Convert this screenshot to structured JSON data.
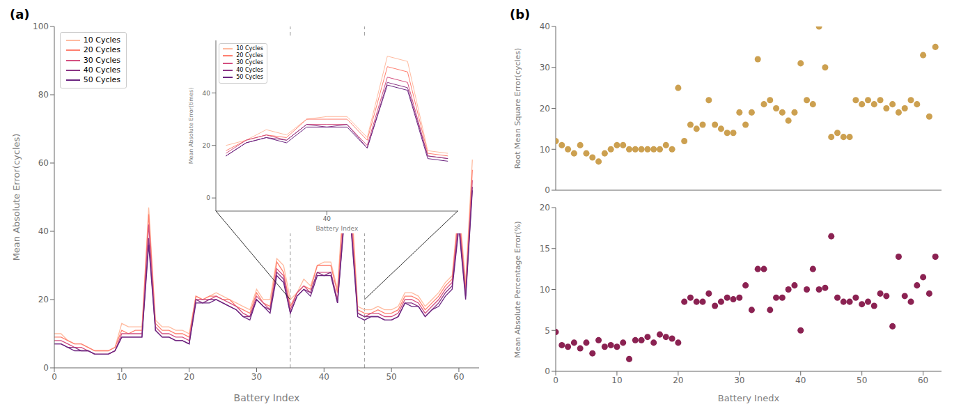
{
  "chart_data": [
    {
      "type": "line",
      "title": "(a)",
      "xlabel": "Battery Index",
      "ylabel": "Mean Absolute Error(cycles)",
      "x": [
        0,
        1,
        2,
        3,
        4,
        5,
        6,
        7,
        8,
        9,
        10,
        11,
        12,
        13,
        14,
        15,
        16,
        17,
        18,
        19,
        20,
        21,
        22,
        23,
        24,
        25,
        26,
        27,
        28,
        29,
        30,
        31,
        32,
        33,
        34,
        35,
        36,
        37,
        38,
        39,
        40,
        41,
        42,
        43,
        44,
        45,
        46,
        47,
        48,
        49,
        50,
        51,
        52,
        53,
        54,
        55,
        56,
        57,
        58,
        59,
        60,
        61,
        62
      ],
      "xlim": [
        0,
        63
      ],
      "ylim": [
        0,
        100
      ],
      "xticks": [
        0,
        10,
        20,
        30,
        40,
        50,
        60
      ],
      "yticks": [
        0,
        20,
        40,
        60,
        80,
        100
      ],
      "legend": "upper left",
      "grid": false,
      "vlines": [
        35,
        46
      ],
      "connector_y": 20,
      "series": [
        {
          "name": "10 Cycles",
          "color": "#FFBBA0",
          "values": [
            10,
            10,
            8,
            7,
            7,
            6,
            5,
            5,
            5,
            6,
            13,
            12,
            12,
            12,
            47,
            14,
            12,
            12,
            11,
            11,
            10,
            21,
            20,
            21,
            22,
            21,
            20,
            19,
            18,
            17,
            23,
            20,
            20,
            32,
            30,
            20,
            22,
            26,
            24,
            30,
            31,
            31,
            23,
            54,
            52,
            18,
            17,
            17,
            18,
            17,
            17,
            18,
            22,
            22,
            21,
            18,
            20,
            22,
            25,
            27,
            48,
            25,
            61
          ]
        },
        {
          "name": "20 Cycles",
          "color": "#FF8070",
          "values": [
            9,
            9,
            8,
            7,
            7,
            6,
            5,
            5,
            5,
            6,
            11,
            10,
            11,
            11,
            45,
            13,
            11,
            11,
            10,
            10,
            9,
            21,
            20,
            21,
            21,
            20,
            20,
            18,
            17,
            16,
            22,
            19,
            18,
            31,
            28,
            18,
            22,
            24,
            23,
            30,
            30,
            30,
            22,
            50,
            48,
            17,
            16,
            16,
            17,
            16,
            16,
            17,
            21,
            21,
            20,
            17,
            19,
            21,
            24,
            26,
            46,
            23,
            58
          ]
        },
        {
          "name": "30 Cycles",
          "color": "#D45080",
          "values": [
            8,
            8,
            7,
            6,
            6,
            5,
            4,
            4,
            4,
            5,
            10,
            10,
            10,
            10,
            42,
            12,
            10,
            10,
            9,
            9,
            8,
            20,
            20,
            20,
            21,
            20,
            19,
            18,
            16,
            15,
            21,
            19,
            17,
            29,
            27,
            17,
            22,
            24,
            22,
            28,
            28,
            28,
            20,
            46,
            44,
            16,
            15,
            16,
            16,
            15,
            15,
            16,
            20,
            20,
            19,
            16,
            18,
            20,
            23,
            25,
            44,
            22,
            55
          ]
        },
        {
          "name": "40 Cycles",
          "color": "#8B3585",
          "values": [
            7,
            7,
            6,
            6,
            5,
            5,
            4,
            4,
            4,
            5,
            9,
            9,
            9,
            9,
            38,
            11,
            9,
            9,
            8,
            8,
            7,
            20,
            19,
            20,
            20,
            19,
            18,
            17,
            15,
            15,
            20,
            18,
            17,
            28,
            26,
            16,
            21,
            23,
            22,
            28,
            27,
            28,
            19,
            44,
            42,
            16,
            15,
            15,
            15,
            14,
            14,
            15,
            19,
            19,
            18,
            15,
            17,
            19,
            22,
            24,
            42,
            21,
            53
          ]
        },
        {
          "name": "50 Cycles",
          "color": "#6B2580",
          "values": [
            7,
            7,
            6,
            5,
            5,
            5,
            4,
            4,
            4,
            5,
            9,
            9,
            9,
            9,
            36,
            11,
            9,
            9,
            8,
            8,
            7,
            19,
            19,
            19,
            20,
            19,
            18,
            17,
            15,
            14,
            20,
            18,
            16,
            27,
            25,
            16,
            21,
            23,
            21,
            27,
            27,
            27,
            19,
            43,
            41,
            15,
            14,
            15,
            15,
            14,
            14,
            15,
            19,
            18,
            18,
            15,
            17,
            18,
            21,
            23,
            41,
            20,
            52
          ]
        }
      ]
    },
    {
      "type": "line",
      "xlabel": "Battery Index",
      "ylabel": "Mean Absolute Error(times)",
      "x": [
        35,
        36,
        37,
        38,
        39,
        40,
        41,
        42,
        43,
        44,
        45,
        46
      ],
      "xlim": [
        34.5,
        46.5
      ],
      "ylim": [
        -5,
        60
      ],
      "xticks": [
        40
      ],
      "yticks": [
        0,
        20,
        40
      ],
      "legend": "upper left",
      "grid": false,
      "series": [
        {
          "name": "10 Cycles",
          "color": "#FFBBA0",
          "values": [
            20,
            22,
            26,
            24,
            30,
            31,
            31,
            23,
            54,
            52,
            18,
            17
          ]
        },
        {
          "name": "20 Cycles",
          "color": "#FF8070",
          "values": [
            18,
            22,
            24,
            23,
            30,
            30,
            30,
            22,
            50,
            48,
            17,
            16
          ]
        },
        {
          "name": "30 Cycles",
          "color": "#D45080",
          "values": [
            17,
            22,
            24,
            22,
            28,
            28,
            28,
            20,
            46,
            44,
            16,
            15
          ]
        },
        {
          "name": "40 Cycles",
          "color": "#8B3585",
          "values": [
            16,
            21,
            23,
            22,
            28,
            27,
            28,
            19,
            44,
            42,
            16,
            15
          ]
        },
        {
          "name": "50 Cycles",
          "color": "#6B2580",
          "values": [
            16,
            21,
            23,
            21,
            27,
            27,
            27,
            19,
            43,
            41,
            15,
            14
          ]
        }
      ]
    },
    {
      "type": "scatter",
      "title": "(b)",
      "ylabel": "Root Mean Square Error(cycles)",
      "x": [
        0,
        1,
        2,
        3,
        4,
        5,
        6,
        7,
        8,
        9,
        10,
        11,
        12,
        13,
        14,
        15,
        16,
        17,
        18,
        19,
        20,
        21,
        22,
        23,
        24,
        25,
        26,
        27,
        28,
        29,
        30,
        31,
        32,
        33,
        34,
        35,
        36,
        37,
        38,
        39,
        40,
        41,
        42,
        43,
        44,
        45,
        46,
        47,
        48,
        49,
        50,
        51,
        52,
        53,
        54,
        55,
        56,
        57,
        58,
        59,
        60,
        61,
        62
      ],
      "values": [
        12,
        11,
        10,
        9,
        11,
        9,
        8,
        7,
        9,
        10,
        11,
        11,
        10,
        10,
        10,
        10,
        10,
        10,
        11,
        10,
        25,
        12,
        16,
        15,
        16,
        22,
        16,
        15,
        14,
        14,
        19,
        16,
        19,
        32,
        21,
        22,
        20,
        19,
        17,
        19,
        31,
        22,
        21,
        40,
        30,
        13,
        14,
        13,
        13,
        22,
        21,
        22,
        21,
        22,
        20,
        21,
        19,
        20,
        22,
        21,
        33,
        18,
        35
      ],
      "color": "#CCA050",
      "xlim": [
        0,
        63
      ],
      "ylim": [
        0,
        40
      ],
      "xticks": [
        0,
        10,
        20,
        30,
        40,
        50,
        60
      ],
      "yticks": [
        0,
        10,
        20,
        30,
        40
      ],
      "tick_labels": "y",
      "grid": false
    },
    {
      "type": "scatter",
      "xlabel": "Battery Inedx",
      "ylabel": "Mean Absolute Percentage Error(%)",
      "x": [
        0,
        1,
        2,
        3,
        4,
        5,
        6,
        7,
        8,
        9,
        10,
        11,
        12,
        13,
        14,
        15,
        16,
        17,
        18,
        19,
        20,
        21,
        22,
        23,
        24,
        25,
        26,
        27,
        28,
        29,
        30,
        31,
        32,
        33,
        34,
        35,
        36,
        37,
        38,
        39,
        40,
        41,
        42,
        43,
        44,
        45,
        46,
        47,
        48,
        49,
        50,
        51,
        52,
        53,
        54,
        55,
        56,
        57,
        58,
        59,
        60,
        61,
        62
      ],
      "values": [
        4.8,
        3.2,
        3.0,
        3.5,
        2.8,
        3.5,
        2.2,
        3.8,
        3.0,
        3.2,
        3.0,
        3.5,
        1.5,
        3.8,
        3.8,
        4.2,
        3.5,
        4.5,
        4.2,
        4.0,
        3.5,
        8.5,
        9.0,
        8.5,
        8.5,
        9.5,
        8.0,
        8.5,
        9.0,
        8.8,
        9.0,
        10.5,
        7.5,
        12.5,
        12.5,
        7.5,
        9.0,
        9.0,
        10.0,
        10.5,
        5.0,
        10.0,
        12.5,
        10.0,
        10.2,
        16.5,
        9.0,
        8.5,
        8.5,
        9.0,
        8.2,
        8.5,
        8.0,
        9.5,
        9.2,
        5.5,
        14.0,
        9.2,
        8.5,
        10.5,
        11.5,
        9.5,
        14.0
      ],
      "color": "#8B2252",
      "xlim": [
        0,
        63
      ],
      "ylim": [
        0,
        20
      ],
      "xticks": [
        0,
        10,
        20,
        30,
        40,
        50,
        60
      ],
      "yticks": [
        0,
        5,
        10,
        15,
        20
      ],
      "grid": false
    }
  ]
}
